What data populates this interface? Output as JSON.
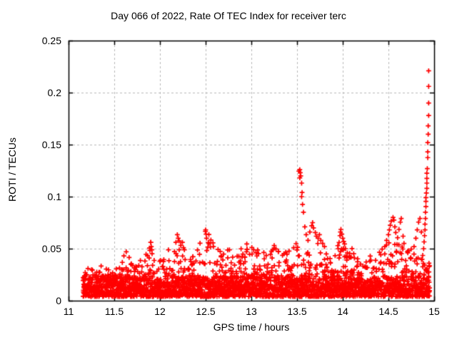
{
  "chart_data": {
    "type": "scatter",
    "title": "Day 066 of 2022, Rate Of TEC Index for receiver terc",
    "xlabel": "GPS time / hours",
    "ylabel": "ROTI / TECUs",
    "xlim": [
      11,
      15
    ],
    "ylim": [
      0,
      0.25
    ],
    "xticks": [
      11,
      11.5,
      12,
      12.5,
      13,
      13.5,
      14,
      14.5,
      15
    ],
    "xtick_labels": [
      "11",
      "11.5",
      "12",
      "12.5",
      "13",
      "13.5",
      "14",
      "14.5",
      "15"
    ],
    "yticks": [
      0,
      0.05,
      0.1,
      0.15,
      0.2,
      0.25
    ],
    "ytick_labels": [
      "0",
      "0.05",
      "0.1",
      "0.15",
      "0.2",
      "0.25"
    ],
    "grid": true,
    "legend": "none",
    "marker": "plus",
    "colors": {
      "points": "#ff0000",
      "grid": "#b8b8b8",
      "axis": "#000000",
      "text": "#000000",
      "background": "#ffffff"
    },
    "x_data_range": [
      11.16,
      14.95
    ],
    "notable_peaks": [
      [
        11.9,
        0.056
      ],
      [
        12.2,
        0.064
      ],
      [
        12.5,
        0.068
      ],
      [
        13.54,
        0.126
      ],
      [
        13.67,
        0.075
      ],
      [
        13.98,
        0.069
      ],
      [
        14.55,
        0.08
      ],
      [
        14.64,
        0.079
      ],
      [
        14.845,
        0.079
      ],
      [
        14.94,
        0.221
      ]
    ],
    "points_model": {
      "seed": 66,
      "n_columns": 860,
      "baseline_band": [
        0.003,
        0.024
      ],
      "envelope": [
        [
          11.16,
          0.026
        ],
        [
          11.25,
          0.034
        ],
        [
          11.33,
          0.03
        ],
        [
          11.4,
          0.025
        ],
        [
          11.48,
          0.033
        ],
        [
          11.55,
          0.045
        ],
        [
          11.62,
          0.048
        ],
        [
          11.7,
          0.035
        ],
        [
          11.8,
          0.034
        ],
        [
          11.9,
          0.056
        ],
        [
          11.97,
          0.042
        ],
        [
          12.05,
          0.048
        ],
        [
          12.13,
          0.045
        ],
        [
          12.2,
          0.064
        ],
        [
          12.28,
          0.048
        ],
        [
          12.35,
          0.042
        ],
        [
          12.42,
          0.052
        ],
        [
          12.5,
          0.068
        ],
        [
          12.58,
          0.055
        ],
        [
          12.65,
          0.044
        ],
        [
          12.75,
          0.048
        ],
        [
          12.85,
          0.042
        ],
        [
          12.95,
          0.055
        ],
        [
          13.05,
          0.045
        ],
        [
          13.15,
          0.05
        ],
        [
          13.25,
          0.052
        ],
        [
          13.33,
          0.044
        ],
        [
          13.42,
          0.048
        ],
        [
          13.5,
          0.055
        ],
        [
          13.58,
          0.045
        ],
        [
          13.65,
          0.05
        ],
        [
          13.72,
          0.058
        ],
        [
          13.8,
          0.05
        ],
        [
          13.88,
          0.045
        ],
        [
          13.95,
          0.052
        ],
        [
          14.02,
          0.05
        ],
        [
          14.1,
          0.048
        ],
        [
          14.18,
          0.038
        ],
        [
          14.25,
          0.042
        ],
        [
          14.33,
          0.038
        ],
        [
          14.42,
          0.048
        ],
        [
          14.5,
          0.058
        ],
        [
          14.58,
          0.055
        ],
        [
          14.65,
          0.05
        ],
        [
          14.72,
          0.045
        ],
        [
          14.8,
          0.05
        ],
        [
          14.88,
          0.042
        ],
        [
          14.95,
          0.04
        ]
      ],
      "spike_points": [
        [
          13.52,
          0.1245
        ],
        [
          13.53,
          0.126
        ],
        [
          13.535,
          0.123
        ],
        [
          13.54,
          0.12
        ],
        [
          13.53,
          0.118
        ],
        [
          13.55,
          0.113
        ],
        [
          13.555,
          0.104
        ],
        [
          13.55,
          0.1
        ],
        [
          13.56,
          0.0925
        ],
        [
          13.57,
          0.085
        ],
        [
          13.585,
          0.071
        ],
        [
          13.6,
          0.0635
        ],
        [
          13.62,
          0.058
        ],
        [
          13.64,
          0.066
        ],
        [
          13.66,
          0.072
        ],
        [
          13.67,
          0.075
        ],
        [
          13.68,
          0.07
        ],
        [
          13.7,
          0.0655
        ],
        [
          13.71,
          0.062
        ],
        [
          13.73,
          0.06
        ],
        [
          13.745,
          0.0635
        ],
        [
          13.76,
          0.058
        ],
        [
          13.78,
          0.055
        ],
        [
          13.8,
          0.052
        ],
        [
          13.95,
          0.05
        ],
        [
          13.96,
          0.056
        ],
        [
          13.97,
          0.0625
        ],
        [
          13.975,
          0.066
        ],
        [
          13.98,
          0.0685
        ],
        [
          13.99,
          0.064
        ],
        [
          14.0,
          0.06
        ],
        [
          14.01,
          0.057
        ],
        [
          14.02,
          0.0545
        ],
        [
          14.03,
          0.05
        ],
        [
          14.05,
          0.046
        ],
        [
          14.07,
          0.042
        ],
        [
          14.46,
          0.052
        ],
        [
          14.48,
          0.058
        ],
        [
          14.5,
          0.0635
        ],
        [
          14.51,
          0.068
        ],
        [
          14.52,
          0.0725
        ],
        [
          14.53,
          0.0765
        ],
        [
          14.55,
          0.08
        ],
        [
          14.56,
          0.0775
        ],
        [
          14.57,
          0.071
        ],
        [
          14.58,
          0.0655
        ],
        [
          14.6,
          0.0605
        ],
        [
          14.615,
          0.0685
        ],
        [
          14.63,
          0.0755
        ],
        [
          14.64,
          0.079
        ],
        [
          14.66,
          0.062
        ],
        [
          14.67,
          0.055
        ],
        [
          14.78,
          0.052
        ],
        [
          14.8,
          0.06
        ],
        [
          14.815,
          0.068
        ],
        [
          14.83,
          0.0755
        ],
        [
          14.845,
          0.079
        ],
        [
          14.86,
          0.066
        ],
        [
          14.875,
          0.0435
        ],
        [
          14.885,
          0.05
        ],
        [
          14.89,
          0.0565
        ],
        [
          14.895,
          0.0625
        ],
        [
          14.9,
          0.068
        ],
        [
          14.9,
          0.0735
        ],
        [
          14.905,
          0.079
        ],
        [
          14.905,
          0.085
        ],
        [
          14.91,
          0.0905
        ],
        [
          14.91,
          0.0955
        ],
        [
          14.91,
          0.099
        ],
        [
          14.915,
          0.1035
        ],
        [
          14.92,
          0.108
        ],
        [
          14.92,
          0.113
        ],
        [
          14.92,
          0.1175
        ],
        [
          14.92,
          0.1225
        ],
        [
          14.925,
          0.127
        ],
        [
          14.93,
          0.1375
        ],
        [
          14.93,
          0.143
        ],
        [
          14.93,
          0.152
        ],
        [
          14.935,
          0.16
        ],
        [
          14.935,
          0.168
        ],
        [
          14.94,
          0.178
        ],
        [
          14.94,
          0.19
        ],
        [
          14.94,
          0.206
        ],
        [
          14.94,
          0.221
        ],
        [
          12.19,
          0.0635
        ],
        [
          12.2,
          0.06
        ],
        [
          12.21,
          0.0575
        ],
        [
          12.5,
          0.068
        ],
        [
          12.505,
          0.064
        ],
        [
          12.51,
          0.06
        ],
        [
          11.9,
          0.056
        ],
        [
          11.905,
          0.052
        ],
        [
          12.95,
          0.0545
        ],
        [
          13.25,
          0.053
        ],
        [
          12.58,
          0.0555
        ],
        [
          12.585,
          0.052
        ]
      ]
    }
  }
}
